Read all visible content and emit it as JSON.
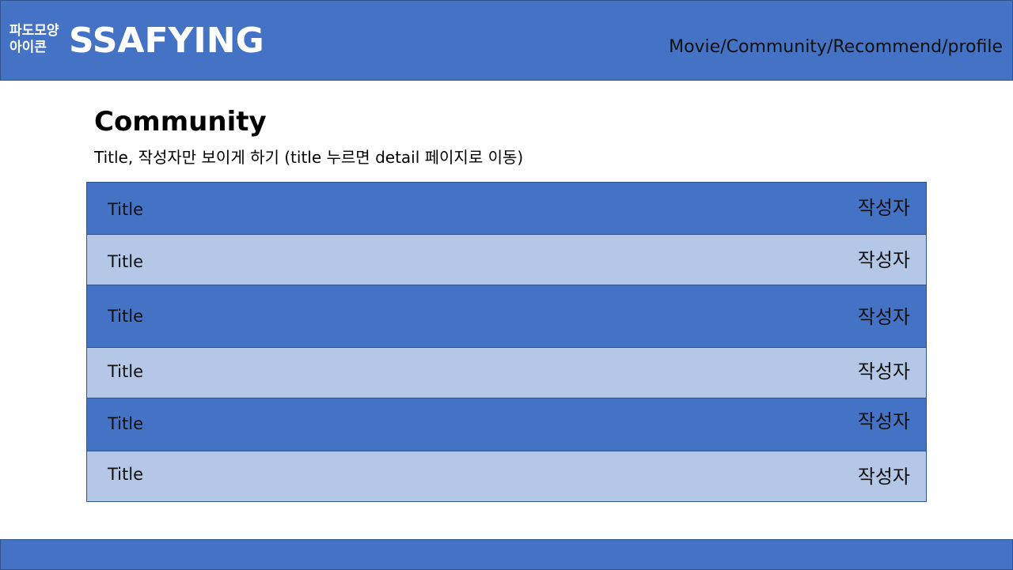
{
  "header": {
    "logo_icon_line1": "파도모양",
    "logo_icon_line2": "아이콘",
    "brand": "SSAFYING",
    "nav": [
      "Movie",
      "Community",
      "Recommend",
      "profile"
    ],
    "nav_separator": "/"
  },
  "main": {
    "title": "Community",
    "description": "Title, 작성자만 보이게 하기 (title 누르면 detail 페이지로 이동)"
  },
  "posts": [
    {
      "title": "Title",
      "author": "작성자",
      "shade": "dark"
    },
    {
      "title": "Title",
      "author": "작성자",
      "shade": "light"
    },
    {
      "title": "Title",
      "author": "작성자",
      "shade": "dark"
    },
    {
      "title": "Title",
      "author": "작성자",
      "shade": "light"
    },
    {
      "title": "Title",
      "author": "작성자",
      "shade": "dark"
    },
    {
      "title": "Title",
      "author": "작성자",
      "shade": "light"
    }
  ],
  "colors": {
    "primary": "#4472c4",
    "row_light": "#b4c7e7",
    "border": "#2f528f"
  }
}
